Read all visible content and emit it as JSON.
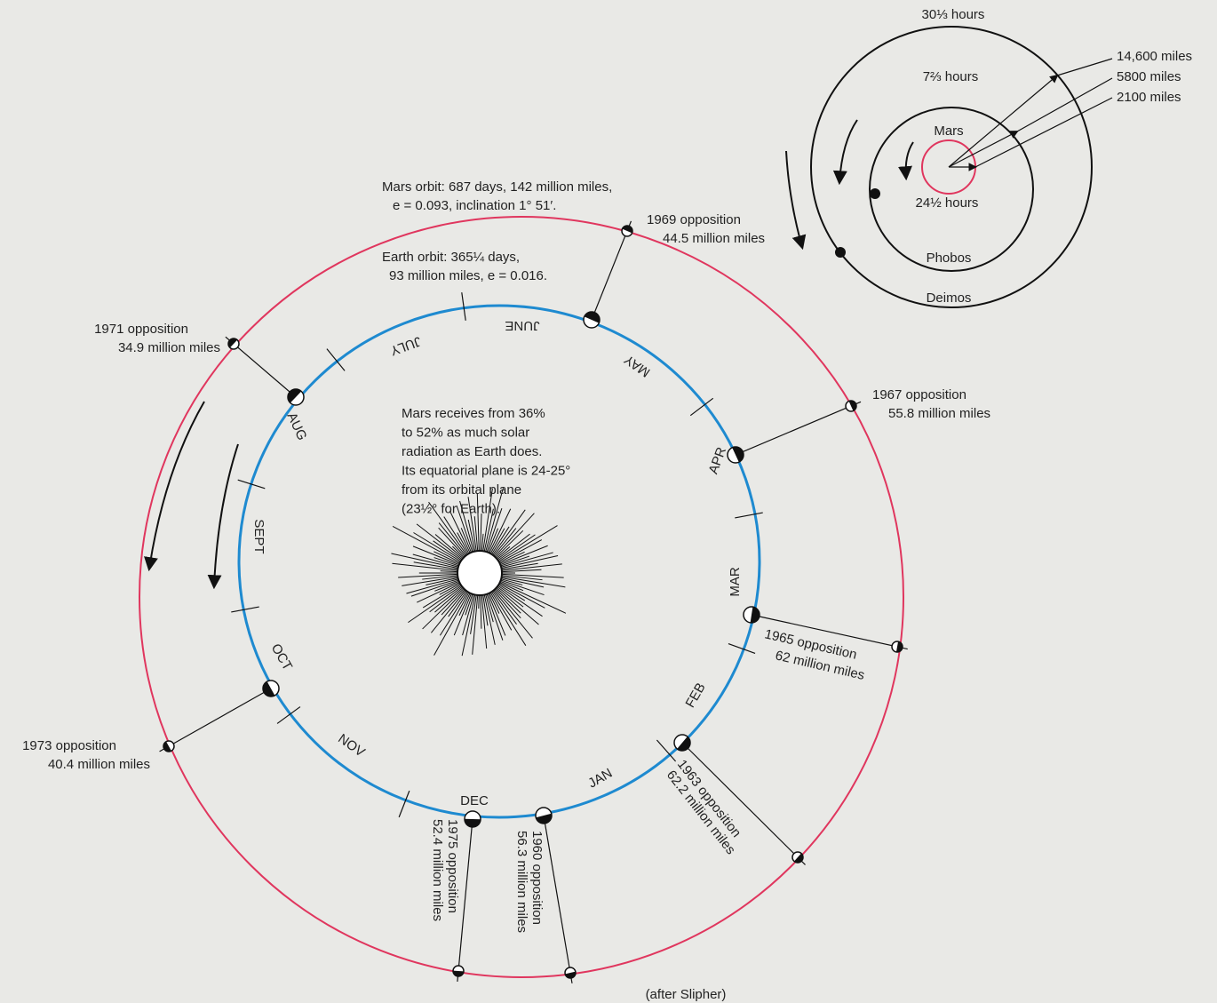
{
  "mars_system": {
    "deimos_period": "30⅓ hours",
    "phobos_period": "7⅔ hours",
    "planet": "Mars",
    "rotation": "24½ hours",
    "phobos": "Phobos",
    "deimos": "Deimos",
    "distances": [
      "14,600 miles",
      "5800 miles",
      "2100 miles"
    ]
  },
  "mars_orbit": [
    "Mars orbit: 687 days, 142 million miles,",
    "e = 0.093, inclination 1° 51′."
  ],
  "earth_orbit": [
    "Earth orbit: 365¼ days,",
    "93 million miles, e = 0.016."
  ],
  "note": [
    "Mars receives from 36%",
    "to 52% as much solar",
    "radiation as Earth does.",
    "Its equatorial plane is 24-25°",
    "from its orbital plane",
    "(23½° for Earth)."
  ],
  "months": [
    "JAN",
    "FEB",
    "MAR",
    "APR",
    "MAY",
    "JUNE",
    "JULY",
    "AUG",
    "SEPT",
    "OCT",
    "NOV",
    "DEC"
  ],
  "oppositions": [
    {
      "year": "1960 opposition",
      "distance": "56.3 million miles"
    },
    {
      "year": "1963 opposition",
      "distance": "62.2 million miles"
    },
    {
      "year": "1965 opposition",
      "distance": "62 million miles"
    },
    {
      "year": "1967 opposition",
      "distance": "55.8 million miles"
    },
    {
      "year": "1969 opposition",
      "distance": "44.5 million miles"
    },
    {
      "year": "1971 opposition",
      "distance": "34.9 million miles"
    },
    {
      "year": "1973 opposition",
      "distance": "40.4 million miles"
    },
    {
      "year": "1975 opposition",
      "distance": "52.4 million miles"
    }
  ],
  "credit": "(after Slipher)"
}
